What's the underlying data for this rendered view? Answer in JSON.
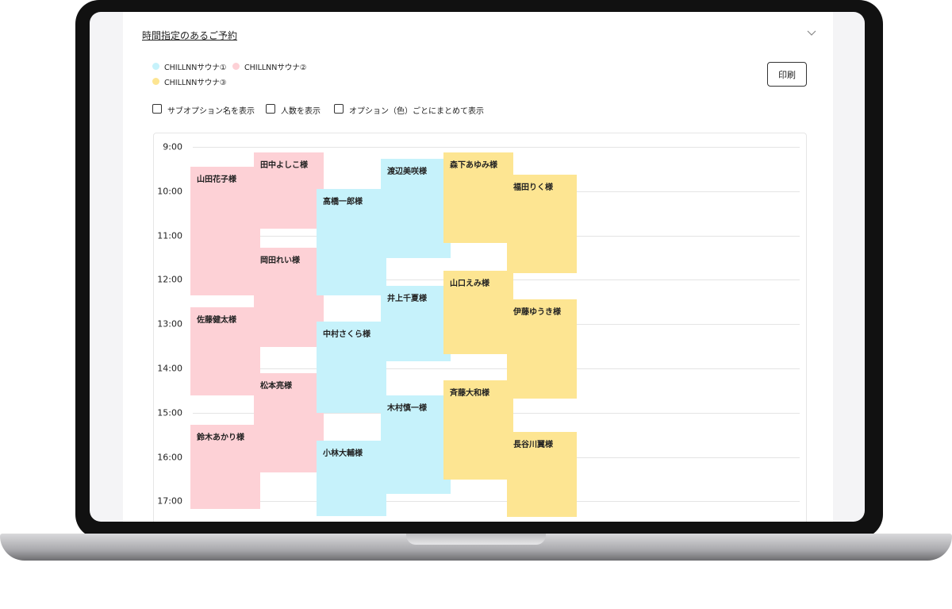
{
  "header": {
    "title": "時間指定のあるご予約"
  },
  "legend": [
    "CHILLNNサウナ①",
    "CHILLNNサウナ②",
    "CHILLNNサウナ③"
  ],
  "print_button": "印刷",
  "options": [
    "サブオプション名を表示",
    "人数を表示",
    "オプション（色）ごとにまとめて表示"
  ],
  "times": [
    "9:00",
    "10:00",
    "11:00",
    "12:00",
    "13:00",
    "14:00",
    "15:00",
    "16:00",
    "17:00"
  ],
  "bookings": [
    "山田花子様",
    "佐藤健太様",
    "鈴木あかり様",
    "田中よしこ様",
    "岡田れい様",
    "松本亮様",
    "高橋一郎様",
    "中村さくら様",
    "小林大輔様",
    "渡辺美咲様",
    "井上千夏様",
    "木村慎一様",
    "森下あゆみ様",
    "山口えみ様",
    "斉藤大和様",
    "福田りく様",
    "伊藤ゆうき様",
    "長谷川翼様"
  ]
}
